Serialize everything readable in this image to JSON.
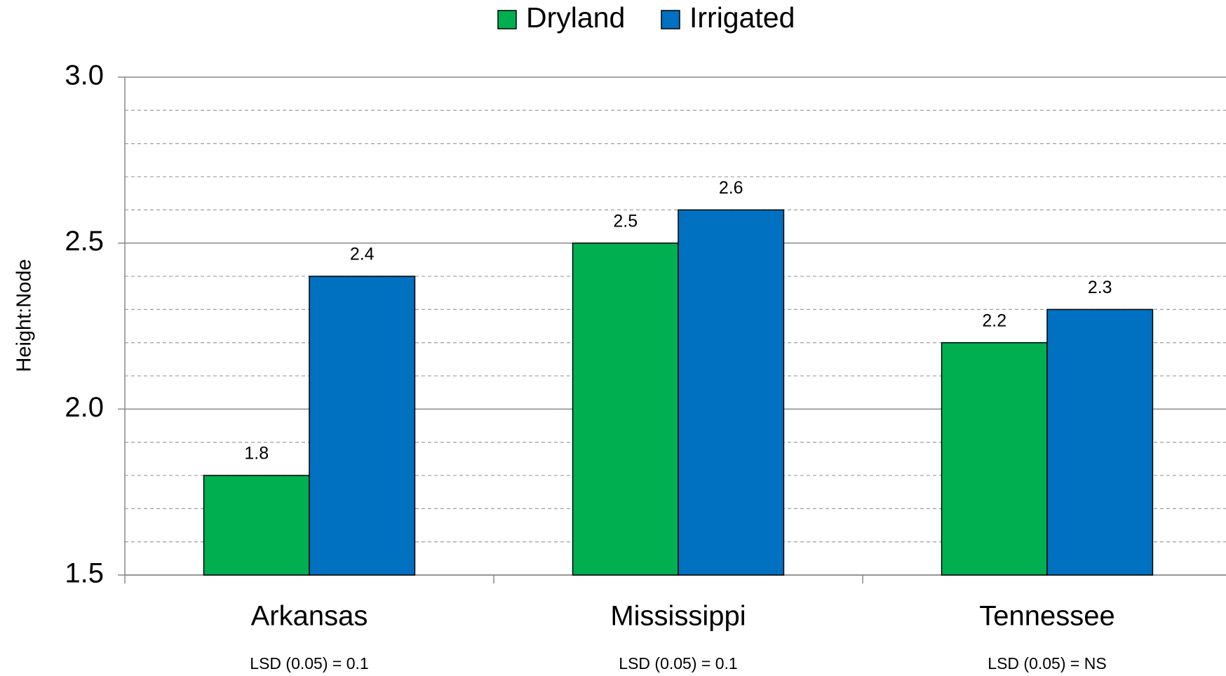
{
  "chart_data": {
    "type": "bar",
    "y_label": "Height:Node",
    "categories": [
      "Arkansas",
      "Mississippi",
      "Tennessee"
    ],
    "series": [
      {
        "name": "Dryland",
        "color": "#00b050",
        "values": [
          1.8,
          2.5,
          2.2
        ]
      },
      {
        "name": "Irrigated",
        "color": "#0070c0",
        "values": [
          2.4,
          2.6,
          2.3
        ]
      }
    ],
    "annotations": [
      "LSD (0.05) = 0.1",
      "LSD (0.05) = 0.1",
      "LSD (0.05) = NS"
    ],
    "ylim": [
      1.5,
      3.0
    ],
    "yticks": [
      1.5,
      {
        "value": 2.0,
        "label": "2.0"
      },
      2.5,
      {
        "value": 3.0,
        "label": "3.0"
      }
    ],
    "minor_yticks": [
      1.6,
      1.7,
      1.8,
      1.9,
      2.1,
      2.2,
      2.3,
      2.4,
      2.6,
      2.7,
      2.8,
      2.9
    ],
    "grid": true,
    "legend": "top"
  }
}
